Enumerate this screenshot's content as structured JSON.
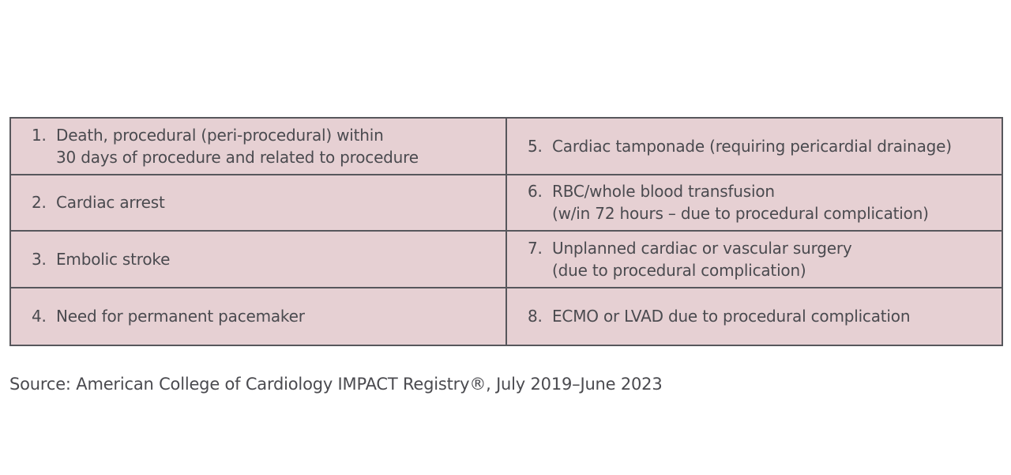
{
  "items": [
    {
      "num": "1.",
      "lines": [
        "Death, procedural (peri-procedural) within",
        "30 days of procedure and related to procedure"
      ]
    },
    {
      "num": "2.",
      "lines": [
        "Cardiac arrest"
      ]
    },
    {
      "num": "3.",
      "lines": [
        "Embolic stroke"
      ]
    },
    {
      "num": "4.",
      "lines": [
        "Need for permanent pacemaker"
      ]
    },
    {
      "num": "5.",
      "lines": [
        "Cardiac tamponade (requiring pericardial drainage)"
      ]
    },
    {
      "num": "6.",
      "lines": [
        "RBC/whole blood transfusion",
        "(w/in 72 hours – due to procedural complication)"
      ]
    },
    {
      "num": "7.",
      "lines": [
        "Unplanned cardiac or vascular surgery",
        "(due to procedural complication)"
      ]
    },
    {
      "num": "8.",
      "lines": [
        "ECMO or LVAD due to procedural complication"
      ]
    }
  ],
  "source": "Source: American College of Cardiology IMPACT Registry®, July 2019–June 2023"
}
